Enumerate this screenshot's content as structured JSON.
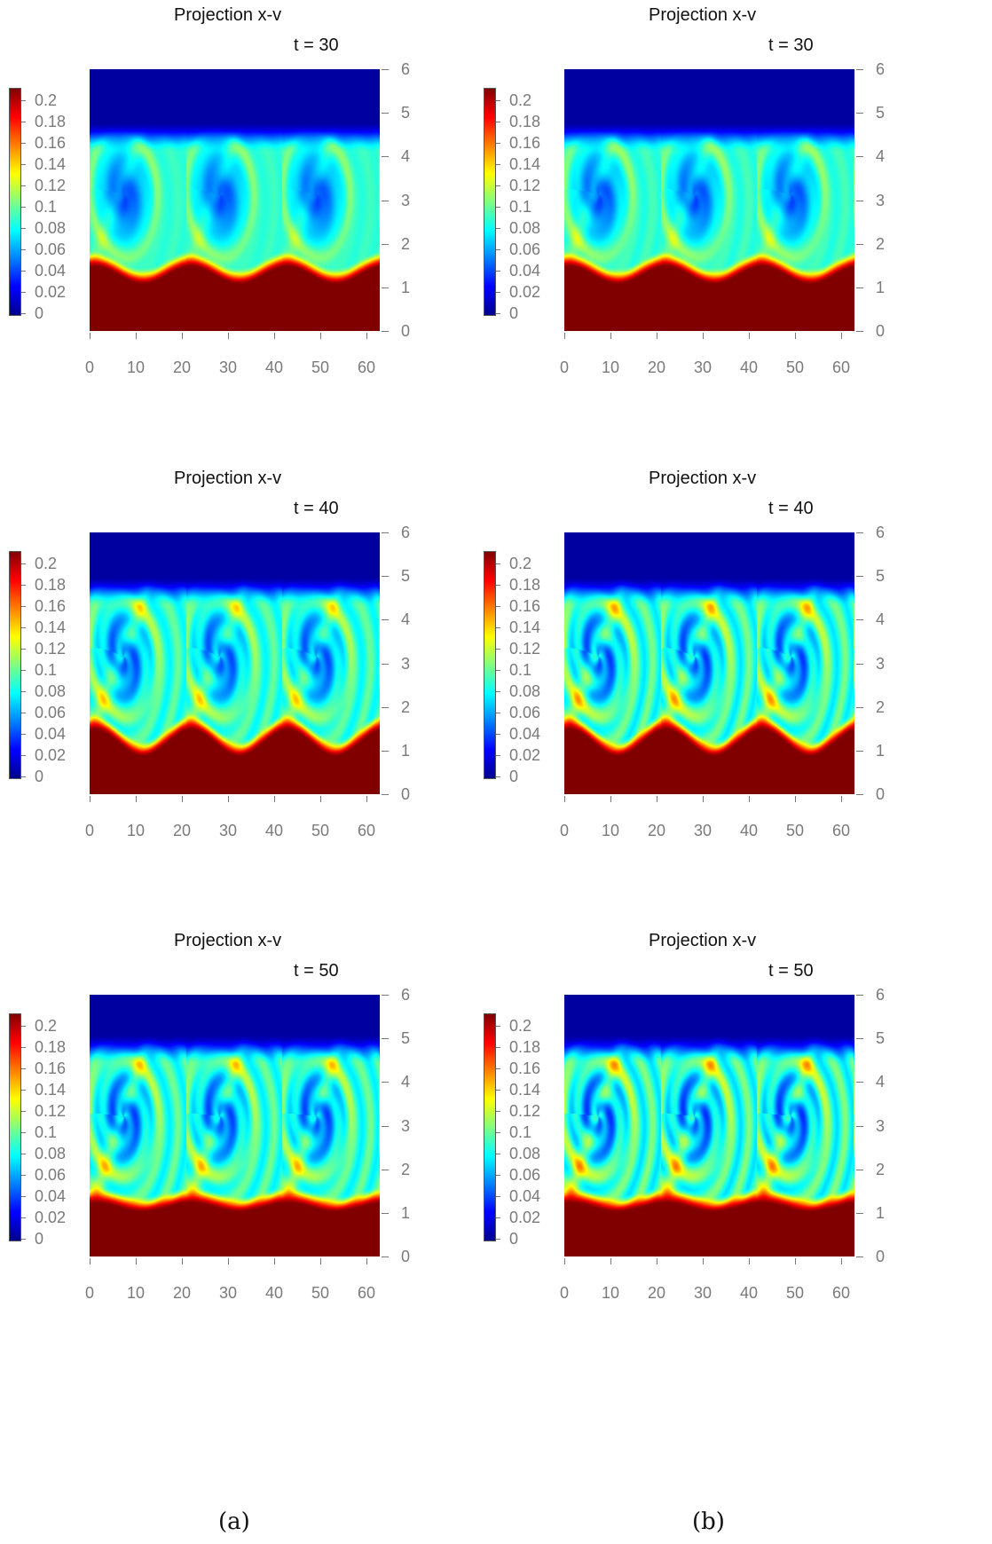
{
  "captions": [
    "(a)",
    "(b)"
  ],
  "colormap": [
    "#00008f",
    "#0000ff",
    "#0080ff",
    "#00ffff",
    "#80ff80",
    "#ffff00",
    "#ff8000",
    "#ff0000",
    "#800000"
  ],
  "chart_data": [
    {
      "type": "heatmap",
      "column": "a",
      "title": "Projection x-v",
      "time_label": "t = 30",
      "xlim": [
        0,
        62.8
      ],
      "ylim": [
        0,
        6
      ],
      "x_ticks": [
        "0",
        "10",
        "20",
        "30",
        "40",
        "50",
        "60"
      ],
      "y_ticks": [
        "0",
        "1",
        "2",
        "3",
        "4",
        "5",
        "6"
      ],
      "colorbar_ticks": [
        "0.2",
        "0.18",
        "0.16",
        "0.14",
        "0.12",
        "0.1",
        "0.08",
        "0.06",
        "0.04",
        "0.02",
        "0"
      ],
      "colorbar_range": [
        0,
        0.2
      ],
      "vortex_count": 3,
      "wavelength": 20.9,
      "interface_mean_v": 1.4,
      "interface_amplitude": 0.2,
      "vortex_top_v": 4.5,
      "fine_structure": 0.15,
      "y_axis_side": "right",
      "colorbar_side": "left"
    },
    {
      "type": "heatmap",
      "column": "b",
      "title": "Projection x-v",
      "time_label": "t = 30",
      "xlim": [
        0,
        62.8
      ],
      "ylim": [
        0,
        6
      ],
      "x_ticks": [
        "0",
        "10",
        "20",
        "30",
        "40",
        "50",
        "60"
      ],
      "y_ticks": [
        "0",
        "1",
        "2",
        "3",
        "4",
        "5",
        "6"
      ],
      "colorbar_ticks": [
        "0.2",
        "0.18",
        "0.16",
        "0.14",
        "0.12",
        "0.1",
        "0.08",
        "0.06",
        "0.04",
        "0.02",
        "0"
      ],
      "colorbar_range": [
        0,
        0.2
      ],
      "vortex_count": 3,
      "wavelength": 20.9,
      "interface_mean_v": 1.4,
      "interface_amplitude": 0.2,
      "vortex_top_v": 4.5,
      "fine_structure": 0.25,
      "y_axis_side": "right",
      "colorbar_side": "left"
    },
    {
      "type": "heatmap",
      "column": "a",
      "title": "Projection x-v",
      "time_label": "t = 40",
      "xlim": [
        0,
        62.8
      ],
      "ylim": [
        0,
        6
      ],
      "x_ticks": [
        "0",
        "10",
        "20",
        "30",
        "40",
        "50",
        "60"
      ],
      "y_ticks": [
        "0",
        "1",
        "2",
        "3",
        "4",
        "5",
        "6"
      ],
      "colorbar_ticks": [
        "0.2",
        "0.18",
        "0.16",
        "0.14",
        "0.12",
        "0.1",
        "0.08",
        "0.06",
        "0.04",
        "0.02",
        "0"
      ],
      "colorbar_range": [
        0,
        0.2
      ],
      "vortex_count": 3,
      "wavelength": 20.9,
      "interface_mean_v": 1.3,
      "interface_amplitude": 0.3,
      "vortex_top_v": 4.7,
      "fine_structure": 0.6,
      "y_axis_side": "right",
      "colorbar_side": "left"
    },
    {
      "type": "heatmap",
      "column": "b",
      "title": "Projection x-v",
      "time_label": "t = 40",
      "xlim": [
        0,
        62.8
      ],
      "ylim": [
        0,
        6
      ],
      "x_ticks": [
        "0",
        "10",
        "20",
        "30",
        "40",
        "50",
        "60"
      ],
      "y_ticks": [
        "0",
        "1",
        "2",
        "3",
        "4",
        "5",
        "6"
      ],
      "colorbar_ticks": [
        "0.2",
        "0.18",
        "0.16",
        "0.14",
        "0.12",
        "0.1",
        "0.08",
        "0.06",
        "0.04",
        "0.02",
        "0"
      ],
      "colorbar_range": [
        0,
        0.2
      ],
      "vortex_count": 3,
      "wavelength": 20.9,
      "interface_mean_v": 1.3,
      "interface_amplitude": 0.3,
      "vortex_top_v": 4.7,
      "fine_structure": 0.8,
      "y_axis_side": "right",
      "colorbar_side": "left"
    },
    {
      "type": "heatmap",
      "column": "a",
      "title": "Projection x-v",
      "time_label": "t = 50",
      "xlim": [
        0,
        62.8
      ],
      "ylim": [
        0,
        6
      ],
      "x_ticks": [
        "0",
        "10",
        "20",
        "30",
        "40",
        "50",
        "60"
      ],
      "y_ticks": [
        "0",
        "1",
        "2",
        "3",
        "4",
        "5",
        "6"
      ],
      "colorbar_ticks": [
        "0.2",
        "0.18",
        "0.16",
        "0.14",
        "0.12",
        "0.1",
        "0.08",
        "0.06",
        "0.04",
        "0.02",
        "0"
      ],
      "colorbar_range": [
        0,
        0.2
      ],
      "vortex_count": 3,
      "wavelength": 20.9,
      "interface_mean_v": 1.25,
      "interface_amplitude": 0.1,
      "vortex_top_v": 4.8,
      "fine_structure": 0.7,
      "y_axis_side": "right",
      "colorbar_side": "left"
    },
    {
      "type": "heatmap",
      "column": "b",
      "title": "Projection x-v",
      "time_label": "t = 50",
      "xlim": [
        0,
        62.8
      ],
      "ylim": [
        0,
        6
      ],
      "x_ticks": [
        "0",
        "10",
        "20",
        "30",
        "40",
        "50",
        "60"
      ],
      "y_ticks": [
        "0",
        "1",
        "2",
        "3",
        "4",
        "5",
        "6"
      ],
      "colorbar_ticks": [
        "0.2",
        "0.18",
        "0.16",
        "0.14",
        "0.12",
        "0.1",
        "0.08",
        "0.06",
        "0.04",
        "0.02",
        "0"
      ],
      "colorbar_range": [
        0,
        0.2
      ],
      "vortex_count": 3,
      "wavelength": 20.9,
      "interface_mean_v": 1.25,
      "interface_amplitude": 0.1,
      "vortex_top_v": 4.8,
      "fine_structure": 0.9,
      "y_axis_side": "right",
      "colorbar_side": "left"
    }
  ]
}
